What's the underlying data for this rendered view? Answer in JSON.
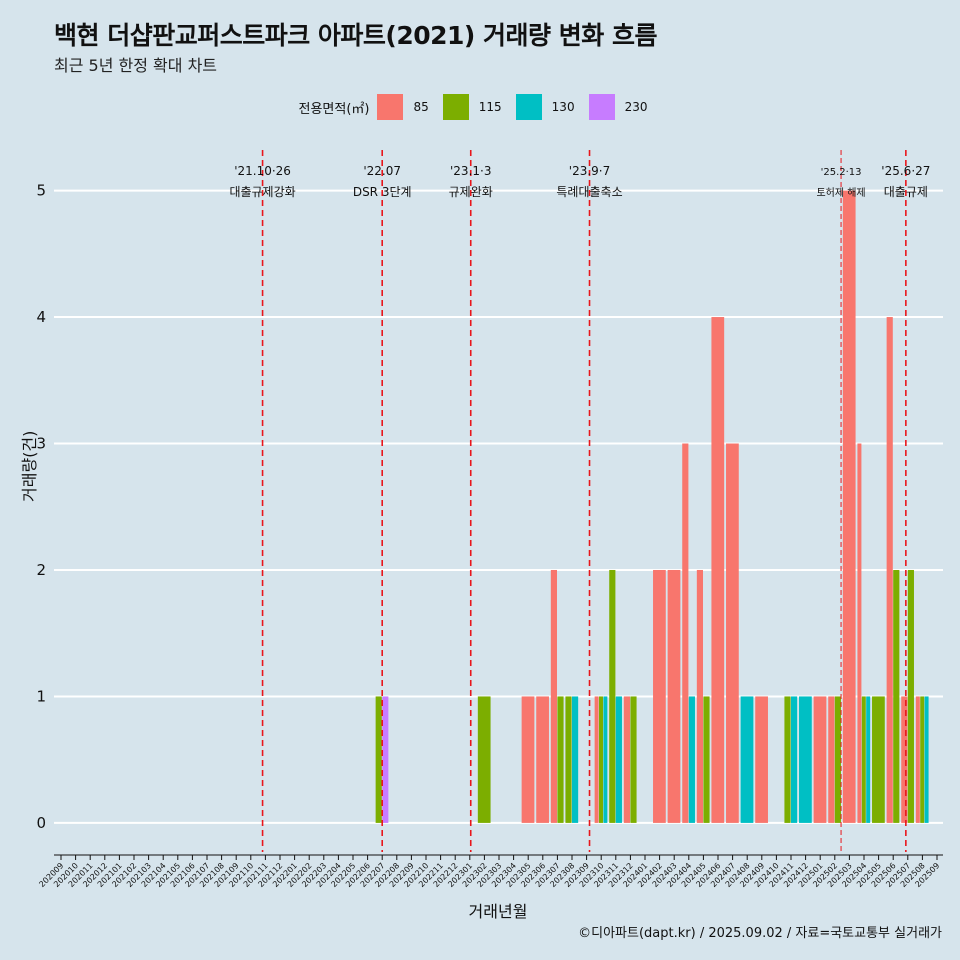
{
  "title": "백현 더샵판교퍼스트파크 아파트(2021) 거래량 변화 흐름",
  "subtitle": "최근 5년 한정 확대 차트",
  "caption": "©디아파트(dapt.kr) / 2025.09.02 / 자료=국토교통부 실거래가",
  "chart_data": {
    "type": "bar",
    "ylabel": "거래량(건)",
    "xlabel": "거래년월",
    "ylim": [
      -0.23,
      5.4
    ],
    "yticks": [
      0,
      1,
      2,
      3,
      4,
      5
    ],
    "grid": true,
    "legend": {
      "title": "전용면적(㎡)",
      "placement": "top",
      "entries": [
        "85",
        "115",
        "130",
        "230"
      ]
    },
    "colors": {
      "85": "#f8766d",
      "115": "#7cae00",
      "130": "#00bfc4",
      "230": "#c77cff",
      "event_line": "#e8161b",
      "background": "#d6e4ec",
      "grid": "#ffffff"
    },
    "categories": [
      "202009",
      "202010",
      "202011",
      "202012",
      "202101",
      "202102",
      "202103",
      "202104",
      "202105",
      "202106",
      "202107",
      "202108",
      "202109",
      "202110",
      "202111",
      "202112",
      "202201",
      "202202",
      "202203",
      "202204",
      "202205",
      "202206",
      "202207",
      "202208",
      "202209",
      "202210",
      "202211",
      "202212",
      "202301",
      "202302",
      "202303",
      "202304",
      "202305",
      "202306",
      "202307",
      "202308",
      "202309",
      "202310",
      "202311",
      "202312",
      "202401",
      "202402",
      "202403",
      "202404",
      "202405",
      "202406",
      "202407",
      "202408",
      "202409",
      "202410",
      "202411",
      "202412",
      "202501",
      "202502",
      "202503",
      "202504",
      "202505",
      "202506",
      "202507",
      "202508",
      "202509"
    ],
    "series": [
      {
        "name": "85",
        "values": [
          0,
          0,
          0,
          0,
          0,
          0,
          0,
          0,
          0,
          0,
          0,
          0,
          0,
          0,
          0,
          0,
          0,
          0,
          0,
          0,
          0,
          0,
          0,
          0,
          0,
          0,
          0,
          0,
          0,
          0,
          0,
          0,
          1,
          1,
          2,
          0,
          0,
          1,
          0,
          1,
          0,
          2,
          2,
          3,
          2,
          4,
          3,
          0,
          1,
          0,
          0,
          0,
          1,
          1,
          5,
          3,
          0,
          4,
          1,
          1,
          0
        ]
      },
      {
        "name": "115",
        "values": [
          0,
          0,
          0,
          0,
          0,
          0,
          0,
          0,
          0,
          0,
          0,
          0,
          0,
          0,
          0,
          0,
          0,
          0,
          0,
          0,
          0,
          0,
          1,
          0,
          0,
          0,
          0,
          0,
          0,
          1,
          0,
          0,
          0,
          0,
          1,
          1,
          0,
          1,
          2,
          1,
          0,
          0,
          0,
          0,
          1,
          0,
          0,
          0,
          0,
          0,
          1,
          0,
          0,
          1,
          0,
          1,
          1,
          2,
          2,
          1,
          0
        ]
      },
      {
        "name": "130",
        "values": [
          0,
          0,
          0,
          0,
          0,
          0,
          0,
          0,
          0,
          0,
          0,
          0,
          0,
          0,
          0,
          0,
          0,
          0,
          0,
          0,
          0,
          0,
          0,
          0,
          0,
          0,
          0,
          0,
          0,
          0,
          0,
          0,
          0,
          0,
          0,
          1,
          0,
          1,
          1,
          0,
          0,
          0,
          0,
          1,
          0,
          0,
          0,
          1,
          0,
          0,
          1,
          1,
          0,
          0,
          0,
          1,
          0,
          0,
          0,
          1,
          0
        ]
      },
      {
        "name": "230",
        "values": [
          0,
          0,
          0,
          0,
          0,
          0,
          0,
          0,
          0,
          0,
          0,
          0,
          0,
          0,
          0,
          0,
          0,
          0,
          0,
          0,
          0,
          0,
          1,
          0,
          0,
          0,
          0,
          0,
          0,
          0,
          0,
          0,
          0,
          0,
          0,
          0,
          0,
          0,
          0,
          0,
          0,
          0,
          0,
          0,
          0,
          0,
          0,
          0,
          0,
          0,
          0,
          0,
          0,
          0,
          0,
          0,
          0,
          0,
          0,
          0,
          0
        ]
      }
    ],
    "annotations": [
      {
        "date": "2021-10-26",
        "label_top": "'21.10·26",
        "label_bottom": "대출규제강화"
      },
      {
        "date": "2022-07-01",
        "label_top": "'22.07",
        "label_bottom": "DSR 3단계"
      },
      {
        "date": "2023-01-03",
        "label_top": "'23.1·3",
        "label_bottom": "규제완화"
      },
      {
        "date": "2023-09-07",
        "label_top": "'23.9·7",
        "label_bottom": "특례대출축소"
      },
      {
        "date": "2025-02-13",
        "label_top": "'25.2·13",
        "label_bottom": "토허제 해제",
        "dashed_light": true
      },
      {
        "date": "2025-06-27",
        "label_top": "'25.6·27",
        "label_bottom": "대출규제"
      }
    ]
  }
}
